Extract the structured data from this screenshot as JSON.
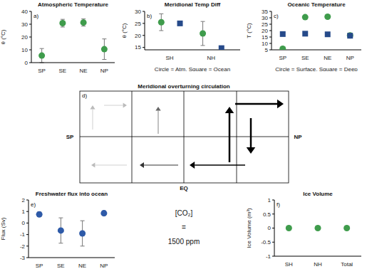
{
  "chart_data": [
    {
      "type": "scatter",
      "label": "a)",
      "title": "Atmospheric Temperature",
      "ylabel": "θ (°C)",
      "categories": [
        "SP",
        "SE",
        "NE",
        "NP"
      ],
      "ylim": [
        0,
        40
      ],
      "yticks": [
        0,
        10,
        20,
        30,
        40
      ],
      "series": [
        {
          "color": "#3f9c4c",
          "marker": "circle",
          "values": [
            5.5,
            30.8,
            31.3,
            10.5
          ],
          "errors": [
            5.5,
            3,
            2.8,
            8
          ]
        }
      ]
    },
    {
      "type": "scatter",
      "label": "b)",
      "title": "Meridional Temp Diff",
      "ylabel": "θ (°C)",
      "xlabel": "Circle = Atm, Square = Ocean",
      "categories": [
        "SH",
        "NH"
      ],
      "ylim": [
        14,
        30
      ],
      "yticks": [
        15,
        20,
        25,
        30
      ],
      "series": [
        {
          "name": "Atm",
          "color": "#3f9c4c",
          "marker": "circle",
          "values": [
            25.5,
            20.8
          ],
          "errors": [
            3.5,
            5
          ]
        },
        {
          "name": "Ocean",
          "color": "#264a8a",
          "marker": "square",
          "values": [
            25,
            14.7
          ]
        }
      ]
    },
    {
      "type": "scatter",
      "label": "c)",
      "title": "Oceanic Temperature",
      "ylabel": "T (°C)",
      "xlabel": "Circle = Surface, Square = Deep",
      "categories": [
        "SP",
        "SE",
        "NE",
        "NP"
      ],
      "ylim": [
        5,
        35
      ],
      "yticks": [
        5,
        10,
        15,
        20,
        25,
        30,
        35
      ],
      "series": [
        {
          "name": "Surface",
          "color": "#3f9c4c",
          "marker": "circle",
          "values": [
            5.8,
            30.5,
            30.8,
            16.3
          ]
        },
        {
          "name": "Deep",
          "color": "#264a8a",
          "marker": "square",
          "values": [
            17.3,
            17.6,
            17.1,
            16.0
          ]
        }
      ]
    },
    {
      "type": "scatter",
      "label": "e)",
      "title": "Freshwater flux into ocean",
      "ylabel": "Flux (Sv)",
      "categories": [
        "SP",
        "SE",
        "NE",
        "NP"
      ],
      "ylim": [
        -3,
        2
      ],
      "yticks": [
        -3,
        -2,
        -1,
        0,
        1,
        2
      ],
      "series": [
        {
          "color": "#2e5aa8",
          "marker": "circle",
          "values": [
            0.75,
            -0.65,
            -0.9,
            0.85
          ],
          "errors": [
            0.2,
            1.1,
            1.1,
            0.2
          ]
        }
      ]
    },
    {
      "type": "scatter",
      "label": "f)",
      "title": "Ice Volume",
      "ylabel": "Ice Volume (m³)",
      "categories": [
        "SH",
        "NH",
        "Total"
      ],
      "ylim": [
        -1,
        1
      ],
      "yticks": [
        -1,
        -0.5,
        0,
        0.5,
        1
      ],
      "series": [
        {
          "color": "#3f9c4c",
          "marker": "circle",
          "values": [
            0,
            0,
            0
          ]
        }
      ]
    }
  ],
  "diagram": {
    "label": "d)",
    "title": "Meridional overturning circulation",
    "left": "SP",
    "right": "NP",
    "bottom": "EQ"
  },
  "annotation": [
    "[CO₂]",
    "=",
    "1500 ppm"
  ]
}
